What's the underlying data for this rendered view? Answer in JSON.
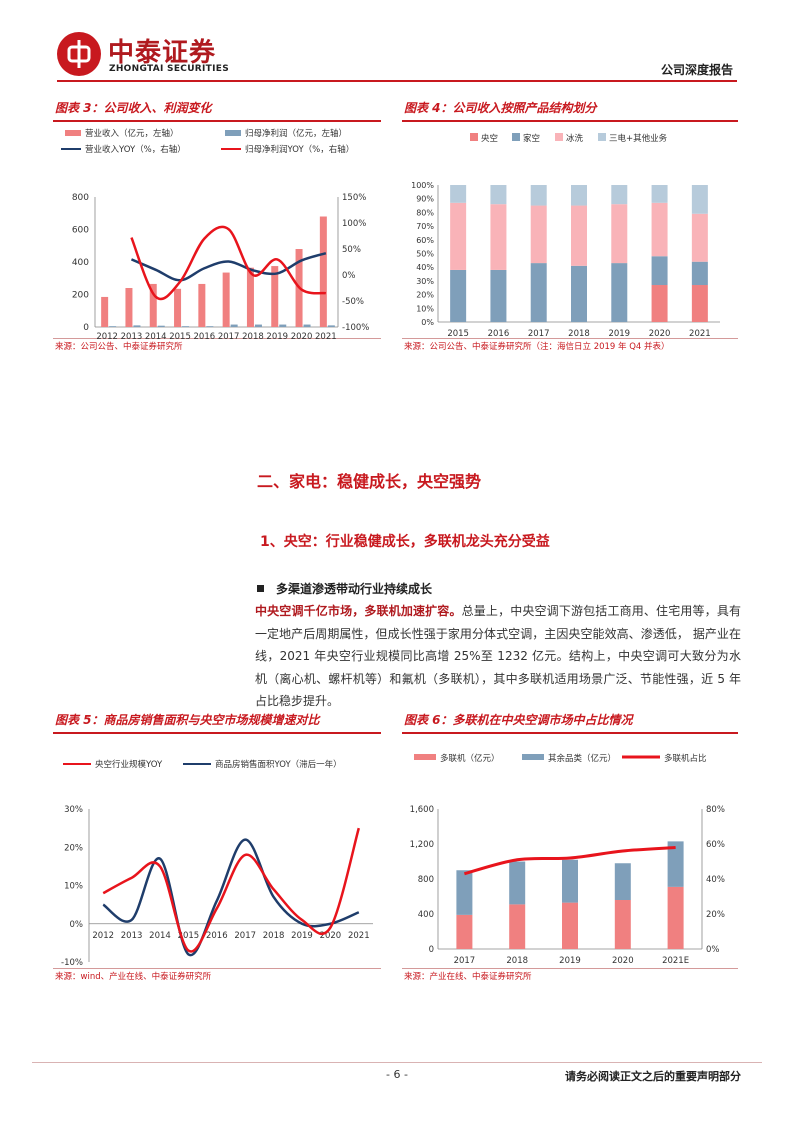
{
  "header": {
    "logo_cn": "中泰证券",
    "logo_en": "ZHONGTAI SECURITIES",
    "report_type": "公司深度报告"
  },
  "fig3": {
    "title": "图表 3：公司收入、利润变化",
    "legend": [
      "营业收入（亿元，左轴）",
      "归母净利润（亿元，左轴）",
      "营业收入YOY（%，右轴）",
      "归母净利润YOY（%，右轴）"
    ],
    "source": "来源：公司公告、中泰证券研究所"
  },
  "fig4": {
    "title": "图表 4：公司收入按照产品结构划分",
    "legend": [
      "央空",
      "家空",
      "冰洗",
      "三电+其他业务"
    ],
    "source": "来源：公司公告、中泰证券研究所（注：海信日立 2019 年 Q4 并表）"
  },
  "fig5": {
    "title": "图表 5：商品房销售面积与央空市场规模增速对比",
    "legend": [
      "央空行业规模YOY",
      "商品房销售面积YOY（滞后一年）"
    ],
    "source": "来源：wind、产业在线、中泰证券研究所"
  },
  "fig6": {
    "title": "图表 6：多联机在中央空调市场中占比情况",
    "legend": [
      "多联机（亿元）",
      "其余品类（亿元）",
      "多联机占比"
    ],
    "source": "来源：产业在线、中泰证券研究所"
  },
  "section": {
    "h2": "二、家电：稳健成长，央空强势",
    "h3": "1、央空：行业稳健成长，多联机龙头充分受益",
    "bullet": "多渠道渗透带动行业持续成长",
    "para_bold": "中央空调千亿市场，多联机加速扩容。",
    "para_text": "总量上，中央空调下游包括工商用、住宅用等，具有一定地产后周期属性，但成长性强于家用分体式空调，主因央空能效高、渗透低， 据产业在线，2021 年央空行业规模同比高增 25%至 1232 亿元。结构上，中央空调可大致分为水机（离心机、螺杆机等）和氟机（多联机），其中多联机适用场景广泛、节能性强，近 5 年占比稳步提升。"
  },
  "footer": {
    "page": "- 6 -",
    "note": "请务必阅读正文之后的重要声明部分"
  },
  "colors": {
    "accent": "#c8191f",
    "pink_bar": "#f08080",
    "blue_bar": "#7f9fba",
    "navy_line": "#1f3d6b",
    "red_line": "#e8141c",
    "light_pink": "#f9b3b8",
    "light_blue": "#b7cbdb"
  },
  "chart_data": [
    {
      "id": "fig3",
      "type": "bar+line",
      "categories": [
        "2012",
        "2013",
        "2014",
        "2015",
        "2016",
        "2017",
        "2018",
        "2019",
        "2020",
        "2021"
      ],
      "series": [
        {
          "name": "营业收入（亿元，左轴）",
          "kind": "bar",
          "axis": "left",
          "values": [
            185,
            240,
            265,
            235,
            265,
            335,
            365,
            375,
            480,
            680
          ]
        },
        {
          "name": "归母净利润（亿元，左轴）",
          "kind": "bar",
          "axis": "left",
          "values": [
            5,
            10,
            8,
            5,
            5,
            15,
            15,
            15,
            15,
            10
          ]
        },
        {
          "name": "营业收入YOY（%，右轴）",
          "kind": "line",
          "axis": "right",
          "values": [
            null,
            30,
            10,
            -10,
            13,
            26,
            9,
            3,
            28,
            42
          ]
        },
        {
          "name": "归母净利润YOY（%，右轴）",
          "kind": "line",
          "axis": "right",
          "values": [
            null,
            72,
            -42,
            -13,
            70,
            88,
            0,
            30,
            -28,
            -35
          ]
        }
      ],
      "ylim_left": [
        0,
        800
      ],
      "yticks_left": [
        "0",
        "200",
        "400",
        "600",
        "800"
      ],
      "ylim_right": [
        -100,
        150
      ],
      "yticks_right": [
        "-100%",
        "-50%",
        "0%",
        "50%",
        "100%",
        "150%"
      ]
    },
    {
      "id": "fig4",
      "type": "stacked-bar",
      "categories": [
        "2015",
        "2016",
        "2017",
        "2018",
        "2019",
        "2020",
        "2021"
      ],
      "series": [
        {
          "name": "央空",
          "values": [
            0,
            0,
            0,
            0,
            0,
            27,
            27
          ]
        },
        {
          "name": "家空",
          "values": [
            38,
            38,
            43,
            41,
            43,
            21,
            17
          ]
        },
        {
          "name": "冰洗",
          "values": [
            49,
            48,
            42,
            44,
            43,
            39,
            35
          ]
        },
        {
          "name": "三电+其他业务",
          "values": [
            13,
            14,
            15,
            15,
            14,
            13,
            21
          ]
        }
      ],
      "ylim": [
        0,
        100
      ],
      "yticks": [
        "0%",
        "10%",
        "20%",
        "30%",
        "40%",
        "50%",
        "60%",
        "70%",
        "80%",
        "90%",
        "100%"
      ]
    },
    {
      "id": "fig5",
      "type": "line",
      "categories": [
        "2012",
        "2013",
        "2014",
        "2015",
        "2016",
        "2017",
        "2018",
        "2019",
        "2020",
        "2021"
      ],
      "series": [
        {
          "name": "央空行业规模YOY",
          "values": [
            8,
            12,
            15,
            -7,
            4,
            18,
            9,
            1,
            -1,
            25
          ]
        },
        {
          "name": "商品房销售面积YOY（滞后一年）",
          "values": [
            5,
            1,
            17,
            -8,
            6,
            22,
            7,
            0,
            0,
            3
          ]
        }
      ],
      "ylim": [
        -10,
        30
      ],
      "yticks": [
        "-10%",
        "0%",
        "10%",
        "20%",
        "30%"
      ]
    },
    {
      "id": "fig6",
      "type": "stacked-bar+line",
      "categories": [
        "2017",
        "2018",
        "2019",
        "2020",
        "2021E"
      ],
      "series": [
        {
          "name": "多联机（亿元）",
          "kind": "bar",
          "values": [
            390,
            510,
            530,
            560,
            710
          ]
        },
        {
          "name": "其余品类（亿元）",
          "kind": "bar",
          "values": [
            510,
            490,
            490,
            420,
            520
          ]
        },
        {
          "name": "多联机占比",
          "kind": "line",
          "axis": "right",
          "values": [
            43,
            51,
            52,
            56,
            58
          ]
        }
      ],
      "ylim_left": [
        0,
        1600
      ],
      "yticks_left": [
        "0",
        "400",
        "800",
        "1,200",
        "1,600"
      ],
      "ylim_right": [
        0,
        80
      ],
      "yticks_right": [
        "0%",
        "20%",
        "40%",
        "60%",
        "80%"
      ]
    }
  ]
}
